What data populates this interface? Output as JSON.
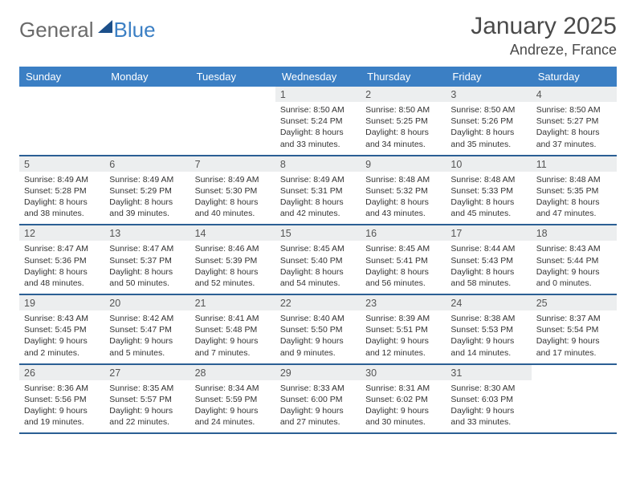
{
  "logo": {
    "general": "General",
    "blue": "Blue"
  },
  "header": {
    "title": "January 2025",
    "location": "Andreze, France"
  },
  "colors": {
    "header_bg": "#3b7fc4",
    "row_border": "#2b5f94",
    "daynum_bg": "#eceeef",
    "text": "#333333",
    "title": "#4a4a4a"
  },
  "daysOfWeek": [
    "Sunday",
    "Monday",
    "Tuesday",
    "Wednesday",
    "Thursday",
    "Friday",
    "Saturday"
  ],
  "startOffset": 3,
  "days": [
    {
      "n": 1,
      "sunrise": "8:50 AM",
      "sunset": "5:24 PM",
      "daylight": "8 hours and 33 minutes."
    },
    {
      "n": 2,
      "sunrise": "8:50 AM",
      "sunset": "5:25 PM",
      "daylight": "8 hours and 34 minutes."
    },
    {
      "n": 3,
      "sunrise": "8:50 AM",
      "sunset": "5:26 PM",
      "daylight": "8 hours and 35 minutes."
    },
    {
      "n": 4,
      "sunrise": "8:50 AM",
      "sunset": "5:27 PM",
      "daylight": "8 hours and 37 minutes."
    },
    {
      "n": 5,
      "sunrise": "8:49 AM",
      "sunset": "5:28 PM",
      "daylight": "8 hours and 38 minutes."
    },
    {
      "n": 6,
      "sunrise": "8:49 AM",
      "sunset": "5:29 PM",
      "daylight": "8 hours and 39 minutes."
    },
    {
      "n": 7,
      "sunrise": "8:49 AM",
      "sunset": "5:30 PM",
      "daylight": "8 hours and 40 minutes."
    },
    {
      "n": 8,
      "sunrise": "8:49 AM",
      "sunset": "5:31 PM",
      "daylight": "8 hours and 42 minutes."
    },
    {
      "n": 9,
      "sunrise": "8:48 AM",
      "sunset": "5:32 PM",
      "daylight": "8 hours and 43 minutes."
    },
    {
      "n": 10,
      "sunrise": "8:48 AM",
      "sunset": "5:33 PM",
      "daylight": "8 hours and 45 minutes."
    },
    {
      "n": 11,
      "sunrise": "8:48 AM",
      "sunset": "5:35 PM",
      "daylight": "8 hours and 47 minutes."
    },
    {
      "n": 12,
      "sunrise": "8:47 AM",
      "sunset": "5:36 PM",
      "daylight": "8 hours and 48 minutes."
    },
    {
      "n": 13,
      "sunrise": "8:47 AM",
      "sunset": "5:37 PM",
      "daylight": "8 hours and 50 minutes."
    },
    {
      "n": 14,
      "sunrise": "8:46 AM",
      "sunset": "5:39 PM",
      "daylight": "8 hours and 52 minutes."
    },
    {
      "n": 15,
      "sunrise": "8:45 AM",
      "sunset": "5:40 PM",
      "daylight": "8 hours and 54 minutes."
    },
    {
      "n": 16,
      "sunrise": "8:45 AM",
      "sunset": "5:41 PM",
      "daylight": "8 hours and 56 minutes."
    },
    {
      "n": 17,
      "sunrise": "8:44 AM",
      "sunset": "5:43 PM",
      "daylight": "8 hours and 58 minutes."
    },
    {
      "n": 18,
      "sunrise": "8:43 AM",
      "sunset": "5:44 PM",
      "daylight": "9 hours and 0 minutes."
    },
    {
      "n": 19,
      "sunrise": "8:43 AM",
      "sunset": "5:45 PM",
      "daylight": "9 hours and 2 minutes."
    },
    {
      "n": 20,
      "sunrise": "8:42 AM",
      "sunset": "5:47 PM",
      "daylight": "9 hours and 5 minutes."
    },
    {
      "n": 21,
      "sunrise": "8:41 AM",
      "sunset": "5:48 PM",
      "daylight": "9 hours and 7 minutes."
    },
    {
      "n": 22,
      "sunrise": "8:40 AM",
      "sunset": "5:50 PM",
      "daylight": "9 hours and 9 minutes."
    },
    {
      "n": 23,
      "sunrise": "8:39 AM",
      "sunset": "5:51 PM",
      "daylight": "9 hours and 12 minutes."
    },
    {
      "n": 24,
      "sunrise": "8:38 AM",
      "sunset": "5:53 PM",
      "daylight": "9 hours and 14 minutes."
    },
    {
      "n": 25,
      "sunrise": "8:37 AM",
      "sunset": "5:54 PM",
      "daylight": "9 hours and 17 minutes."
    },
    {
      "n": 26,
      "sunrise": "8:36 AM",
      "sunset": "5:56 PM",
      "daylight": "9 hours and 19 minutes."
    },
    {
      "n": 27,
      "sunrise": "8:35 AM",
      "sunset": "5:57 PM",
      "daylight": "9 hours and 22 minutes."
    },
    {
      "n": 28,
      "sunrise": "8:34 AM",
      "sunset": "5:59 PM",
      "daylight": "9 hours and 24 minutes."
    },
    {
      "n": 29,
      "sunrise": "8:33 AM",
      "sunset": "6:00 PM",
      "daylight": "9 hours and 27 minutes."
    },
    {
      "n": 30,
      "sunrise": "8:31 AM",
      "sunset": "6:02 PM",
      "daylight": "9 hours and 30 minutes."
    },
    {
      "n": 31,
      "sunrise": "8:30 AM",
      "sunset": "6:03 PM",
      "daylight": "9 hours and 33 minutes."
    }
  ],
  "labels": {
    "sunrise": "Sunrise:",
    "sunset": "Sunset:",
    "daylight": "Daylight:"
  }
}
